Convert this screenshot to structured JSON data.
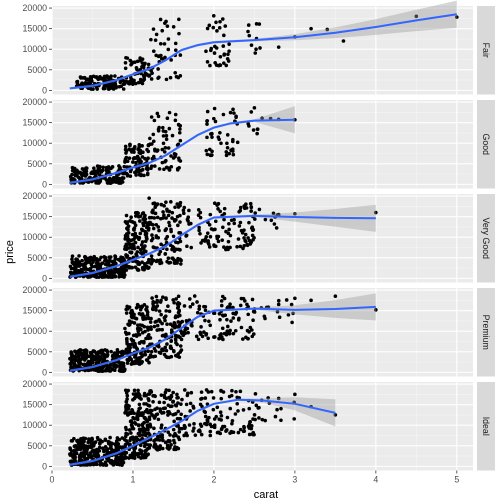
{
  "chart_data": {
    "type": "scatter",
    "xlabel": "carat",
    "ylabel": "price",
    "xlim": [
      0,
      5.2
    ],
    "ylim": [
      -1000,
      20500
    ],
    "x_ticks": [
      "0",
      "1",
      "2",
      "3",
      "4",
      "5"
    ],
    "y_ticks": [
      "0",
      "5000",
      "10000",
      "15000",
      "20000"
    ],
    "grid": true,
    "facets": [
      {
        "label": "Fair",
        "smooth": [
          [
            0.22,
            500
          ],
          [
            0.5,
            1100
          ],
          [
            0.8,
            2500
          ],
          [
            1.0,
            3900
          ],
          [
            1.2,
            5200
          ],
          [
            1.4,
            7300
          ],
          [
            1.6,
            9800
          ],
          [
            1.8,
            11000
          ],
          [
            2.0,
            11700
          ],
          [
            2.5,
            12200
          ],
          [
            3.0,
            12900
          ],
          [
            3.5,
            14000
          ],
          [
            4.0,
            15400
          ],
          [
            4.5,
            17000
          ],
          [
            5.0,
            18500
          ]
        ],
        "clusters": [
          [
            0.3,
            0.9,
            300,
            3500,
            120
          ],
          [
            0.9,
            1.2,
            1500,
            8000,
            60
          ],
          [
            1.2,
            1.6,
            2500,
            18000,
            45
          ],
          [
            1.9,
            2.2,
            6000,
            18500,
            35
          ],
          [
            2.4,
            2.6,
            9000,
            18000,
            10
          ]
        ],
        "outliers": [
          [
            3.0,
            13000
          ],
          [
            3.2,
            15000
          ],
          [
            3.4,
            14800
          ],
          [
            3.6,
            12000
          ],
          [
            4.5,
            18000
          ],
          [
            5.0,
            17800
          ],
          [
            2.8,
            10500
          ]
        ]
      },
      {
        "label": "Good",
        "smooth": [
          [
            0.22,
            400
          ],
          [
            0.5,
            1200
          ],
          [
            0.8,
            2800
          ],
          [
            1.0,
            4100
          ],
          [
            1.2,
            5200
          ],
          [
            1.4,
            7000
          ],
          [
            1.6,
            9500
          ],
          [
            1.8,
            12000
          ],
          [
            2.0,
            13800
          ],
          [
            2.2,
            14800
          ],
          [
            2.5,
            15500
          ],
          [
            3.0,
            15700
          ]
        ],
        "clusters": [
          [
            0.23,
            0.9,
            300,
            4500,
            180
          ],
          [
            0.9,
            1.2,
            2000,
            10000,
            90
          ],
          [
            1.2,
            1.6,
            3500,
            18000,
            70
          ],
          [
            1.9,
            2.3,
            7000,
            18500,
            45
          ],
          [
            2.4,
            2.6,
            12000,
            18000,
            8
          ]
        ],
        "outliers": [
          [
            2.7,
            16000
          ],
          [
            2.8,
            15800
          ],
          [
            3.0,
            15700
          ],
          [
            2.5,
            18600
          ]
        ]
      },
      {
        "label": "Very Good",
        "smooth": [
          [
            0.22,
            400
          ],
          [
            0.5,
            1300
          ],
          [
            0.8,
            3000
          ],
          [
            1.0,
            4500
          ],
          [
            1.2,
            6000
          ],
          [
            1.4,
            7800
          ],
          [
            1.6,
            10500
          ],
          [
            1.8,
            13000
          ],
          [
            2.0,
            14800
          ],
          [
            2.5,
            15200
          ],
          [
            3.0,
            14900
          ],
          [
            3.5,
            14700
          ],
          [
            4.0,
            14600
          ]
        ],
        "clusters": [
          [
            0.22,
            0.9,
            300,
            5500,
            260
          ],
          [
            0.9,
            1.2,
            2000,
            16000,
            160
          ],
          [
            1.2,
            1.6,
            3500,
            18600,
            120
          ],
          [
            1.6,
            2.5,
            7000,
            18600,
            110
          ],
          [
            2.5,
            2.8,
            12000,
            18000,
            10
          ]
        ],
        "outliers": [
          [
            2.8,
            15500
          ],
          [
            3.0,
            15700
          ],
          [
            4.0,
            16000
          ],
          [
            1.2,
            19500
          ]
        ]
      },
      {
        "label": "Premium",
        "smooth": [
          [
            0.22,
            400
          ],
          [
            0.5,
            1300
          ],
          [
            0.8,
            3000
          ],
          [
            1.0,
            4600
          ],
          [
            1.2,
            6000
          ],
          [
            1.4,
            8000
          ],
          [
            1.6,
            10800
          ],
          [
            1.8,
            13500
          ],
          [
            2.0,
            15000
          ],
          [
            2.5,
            15500
          ],
          [
            3.0,
            15200
          ],
          [
            3.5,
            15400
          ],
          [
            4.0,
            15900
          ]
        ],
        "clusters": [
          [
            0.22,
            0.9,
            300,
            5500,
            260
          ],
          [
            0.9,
            1.2,
            2000,
            16500,
            160
          ],
          [
            1.2,
            1.6,
            3500,
            18600,
            120
          ],
          [
            1.5,
            2.5,
            8000,
            18600,
            130
          ],
          [
            2.5,
            3.0,
            12000,
            18000,
            15
          ]
        ],
        "outliers": [
          [
            3.5,
            18500
          ],
          [
            4.0,
            15200
          ],
          [
            3.0,
            18000
          ],
          [
            3.2,
            17500
          ],
          [
            2.8,
            16500
          ]
        ]
      },
      {
        "label": "Ideal",
        "smooth": [
          [
            0.22,
            400
          ],
          [
            0.5,
            1300
          ],
          [
            0.8,
            3200
          ],
          [
            1.0,
            5000
          ],
          [
            1.2,
            6900
          ],
          [
            1.4,
            8900
          ],
          [
            1.6,
            11000
          ],
          [
            1.8,
            13500
          ],
          [
            2.0,
            15200
          ],
          [
            2.3,
            16200
          ],
          [
            2.6,
            16000
          ],
          [
            3.0,
            15200
          ],
          [
            3.5,
            13000
          ]
        ],
        "clusters": [
          [
            0.22,
            0.9,
            300,
            7000,
            300
          ],
          [
            0.9,
            1.2,
            2000,
            18500,
            200
          ],
          [
            1.2,
            1.6,
            4000,
            18600,
            140
          ],
          [
            1.6,
            2.5,
            7500,
            18600,
            120
          ],
          [
            2.5,
            3.0,
            11000,
            18000,
            18
          ]
        ],
        "outliers": [
          [
            3.2,
            14500
          ],
          [
            3.5,
            12500
          ],
          [
            3.0,
            17500
          ],
          [
            2.8,
            16500
          ]
        ]
      }
    ]
  }
}
